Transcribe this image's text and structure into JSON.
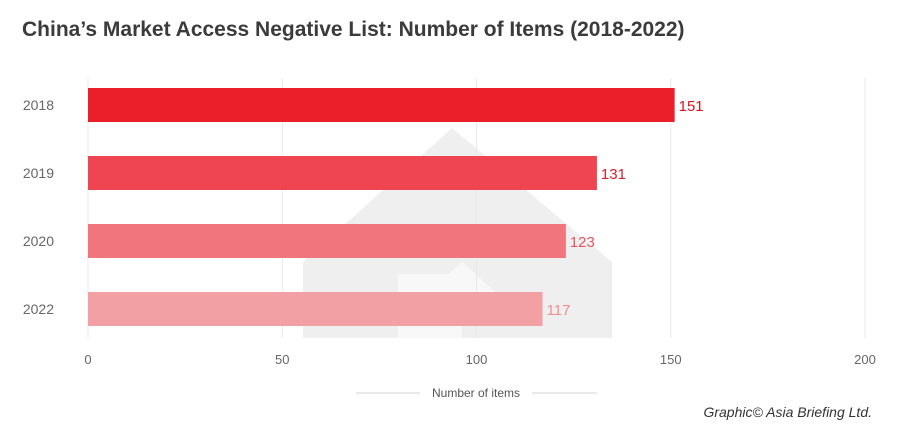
{
  "colors": {
    "background": "#ffffff",
    "grid": "#e9e9e9",
    "tick_text": "#666666",
    "watermark": "#ececec"
  },
  "chart_data": {
    "type": "bar",
    "orientation": "horizontal",
    "title": "China’s Market Access Negative List: Number of Items (2018-2022)",
    "categories": [
      "2018",
      "2019",
      "2020",
      "2022"
    ],
    "values": [
      151,
      131,
      123,
      117
    ],
    "bar_colors": [
      "#ea1f2a",
      "#ee4550",
      "#f0757c",
      "#f3a0a4"
    ],
    "label_colors": [
      "#d7141f",
      "#d9202b",
      "#e4555d",
      "#f08d93"
    ],
    "data_labels": [
      "151",
      "131",
      "123",
      "117"
    ],
    "xlabel": "Number of items",
    "ylabel": "",
    "xlim": [
      0,
      200
    ],
    "x_ticks": [
      0,
      50,
      100,
      150,
      200
    ],
    "grid": true
  },
  "credit": "Graphic© Asia Briefing Ltd."
}
